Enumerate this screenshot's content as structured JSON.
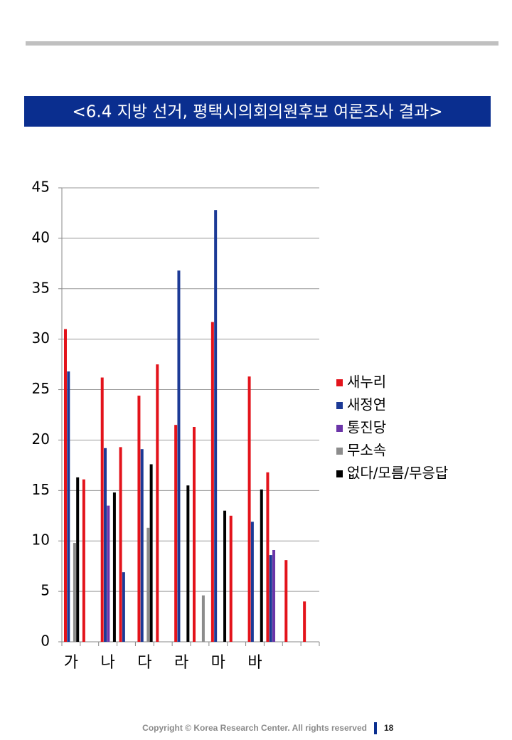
{
  "chart_data": {
    "type": "bar",
    "title": "<6.4 지방 선거, 평택시의회의원후보 여론조사 결과>",
    "categories": [
      "가",
      null,
      "나",
      null,
      "다",
      null,
      "라",
      null,
      "마",
      null,
      "바",
      null,
      null,
      null
    ],
    "series": [
      {
        "name": "새누리",
        "color": "#e3131b",
        "values": [
          31.0,
          16.1,
          26.2,
          19.3,
          24.4,
          27.5,
          21.5,
          21.3,
          31.7,
          12.5,
          26.3,
          16.8,
          8.1,
          4.0
        ]
      },
      {
        "name": "새정연",
        "color": "#1c3a96",
        "values": [
          26.8,
          0,
          19.2,
          6.9,
          19.1,
          0,
          36.8,
          0,
          42.8,
          0,
          11.9,
          8.6,
          0,
          0
        ]
      },
      {
        "name": "통진당",
        "color": "#6b35a8",
        "values": [
          0,
          0,
          13.5,
          0,
          0,
          0,
          0,
          0,
          0,
          0,
          0,
          9.1,
          0,
          0
        ]
      },
      {
        "name": "무소속",
        "color": "#8c8c8c",
        "values": [
          9.8,
          0,
          0,
          0,
          11.3,
          0,
          0,
          4.6,
          0,
          0,
          0,
          0,
          0,
          0
        ]
      },
      {
        "name": "없다/모름/무응답",
        "color": "#000000",
        "values": [
          16.3,
          0,
          14.8,
          0,
          17.6,
          0,
          15.5,
          0,
          13.0,
          0,
          15.1,
          0,
          0,
          0
        ]
      }
    ],
    "ylim": [
      0,
      45
    ],
    "yticks": [
      0,
      5,
      10,
      15,
      20,
      25,
      30,
      35,
      40,
      45
    ],
    "grid": true,
    "legend": "right"
  },
  "footer": {
    "copyright": "Copyright © Korea Research Center. All rights reserved",
    "page_number": "18"
  }
}
